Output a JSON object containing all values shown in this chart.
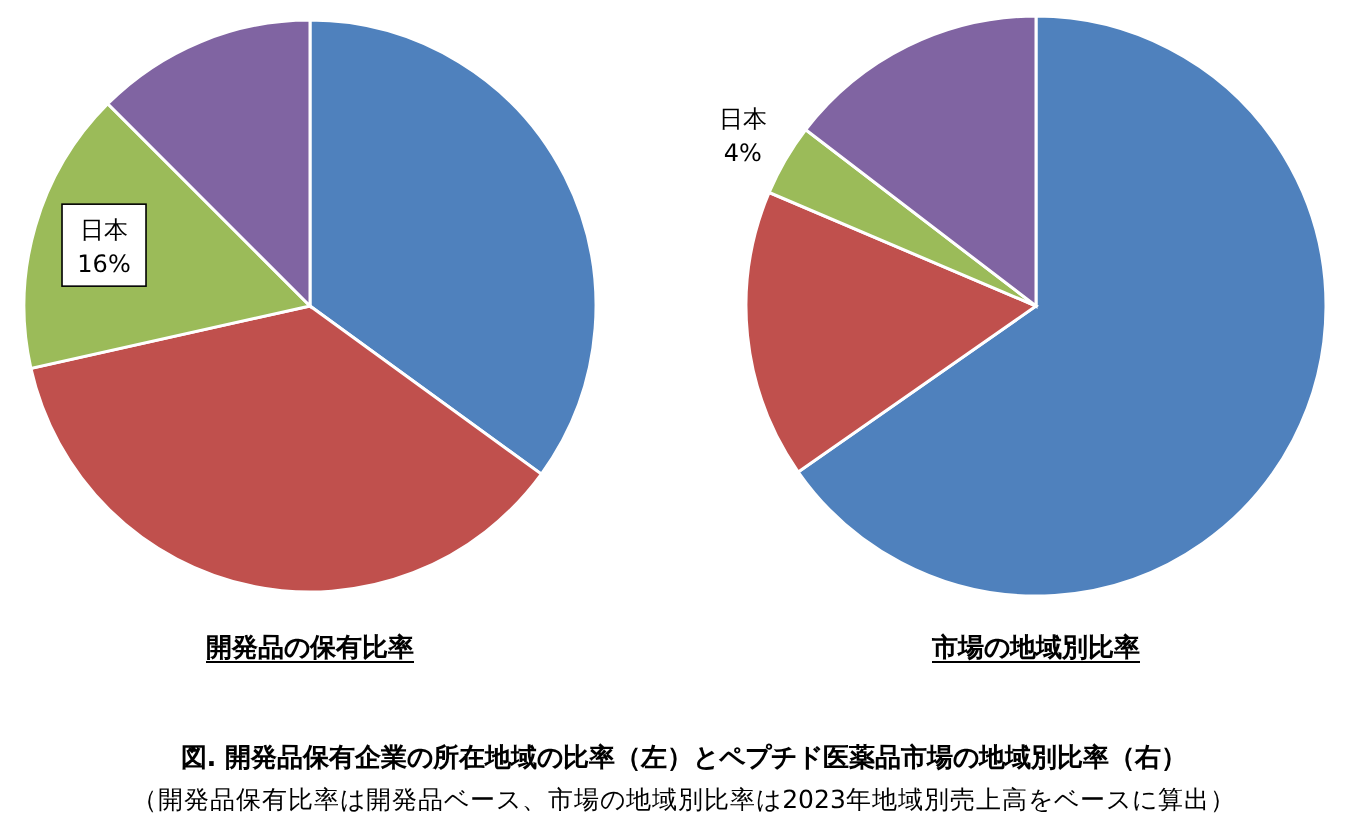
{
  "chart_data": [
    {
      "type": "pie",
      "title": "開発品の保有比率",
      "categories": [
        null,
        null,
        "日本",
        null
      ],
      "values": [
        35,
        36.5,
        16,
        12.5
      ],
      "colors": [
        "#4f81bd",
        "#c0504d",
        "#9bbb59",
        "#8064a2"
      ],
      "value_labels": [
        null,
        null,
        "16%",
        null
      ]
    },
    {
      "type": "pie",
      "title": "市場の地域別比率",
      "categories": [
        null,
        null,
        "日本",
        null
      ],
      "values": [
        65.3,
        16.1,
        4,
        14.6
      ],
      "colors": [
        "#4f81bd",
        "#c0504d",
        "#9bbb59",
        "#8064a2"
      ],
      "value_labels": [
        null,
        null,
        "4%",
        null
      ],
      "annotations": [
        "図. 開発品保有企業の所在地域の比率（左）とペプチド医薬品市場の地域別比率（右）",
        "（開発品保有比率は開発品ベース、市場の地域別比率は2023年地域別売上高をベースに算出）"
      ]
    }
  ]
}
